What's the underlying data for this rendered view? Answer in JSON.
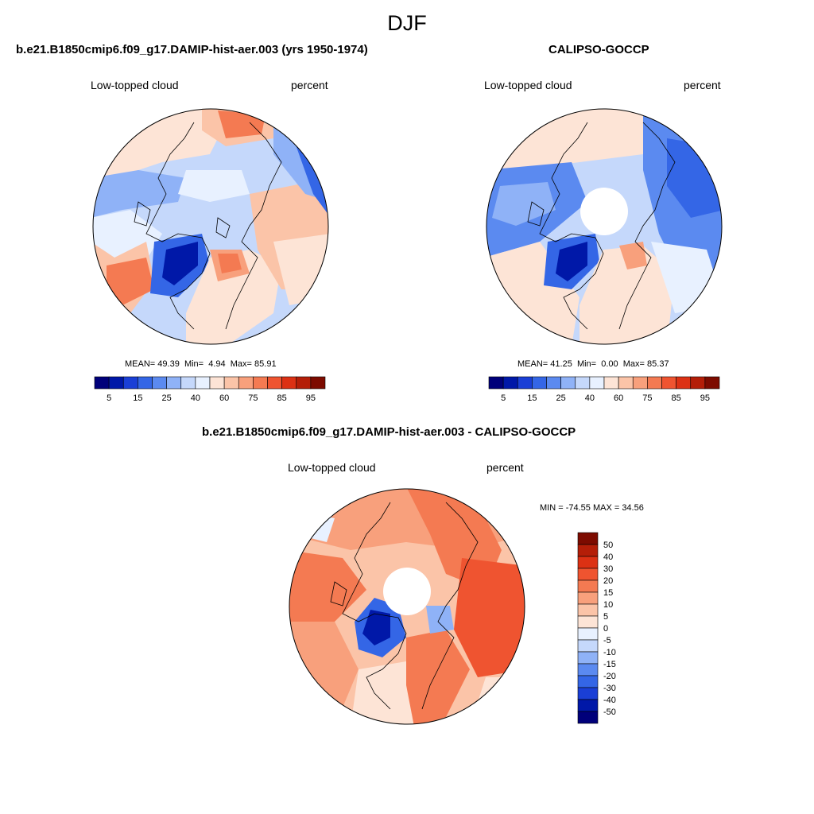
{
  "figure": {
    "season": "DJF",
    "field_label": "Low-topped cloud",
    "units_label": "percent"
  },
  "colorscale": {
    "abs_colors": [
      "#00007a",
      "#0018a8",
      "#1a3fd6",
      "#3466e6",
      "#5b8af0",
      "#8fb2f7",
      "#c5d8fb",
      "#e8f1ff",
      "#fde4d6",
      "#fbc4a8",
      "#f8a07c",
      "#f47a52",
      "#ef5430",
      "#dc3114",
      "#b41e08",
      "#7d0b00"
    ],
    "abs_labels": [
      "5",
      "15",
      "25",
      "40",
      "60",
      "75",
      "85",
      "95"
    ],
    "diff_colors_top_to_bottom": [
      "#7d0b00",
      "#b41e08",
      "#dc3114",
      "#ef5430",
      "#f47a52",
      "#f8a07c",
      "#fbc4a8",
      "#fde4d6",
      "#e8f1ff",
      "#c5d8fb",
      "#8fb2f7",
      "#5b8af0",
      "#3466e6",
      "#1a3fd6",
      "#0018a8",
      "#00007a"
    ],
    "diff_labels": [
      "50",
      "40",
      "30",
      "20",
      "15",
      "10",
      "5",
      "0",
      "-5",
      "-10",
      "-15",
      "-20",
      "-30",
      "-40",
      "-50"
    ]
  },
  "panels": {
    "model": {
      "title": "b.e21.B1850cmip6.f09_g17.DAMIP-hist-aer.003 (yrs 1950-1974)",
      "mean_label": "MEAN=",
      "mean": "49.39",
      "min_label": "Min=",
      "min": "4.94",
      "max_label": "Max=",
      "max": "85.91"
    },
    "obs": {
      "title": "CALIPSO-GOCCP",
      "mean_label": "MEAN=",
      "mean": "41.25",
      "min_label": "Min=",
      "min": "0.00",
      "max_label": "Max=",
      "max": "85.37"
    },
    "diff": {
      "title": "b.e21.B1850cmip6.f09_g17.DAMIP-hist-aer.003 - CALIPSO-GOCCP",
      "minmax_text": "MIN = -74.55 MAX =  34.56"
    }
  }
}
